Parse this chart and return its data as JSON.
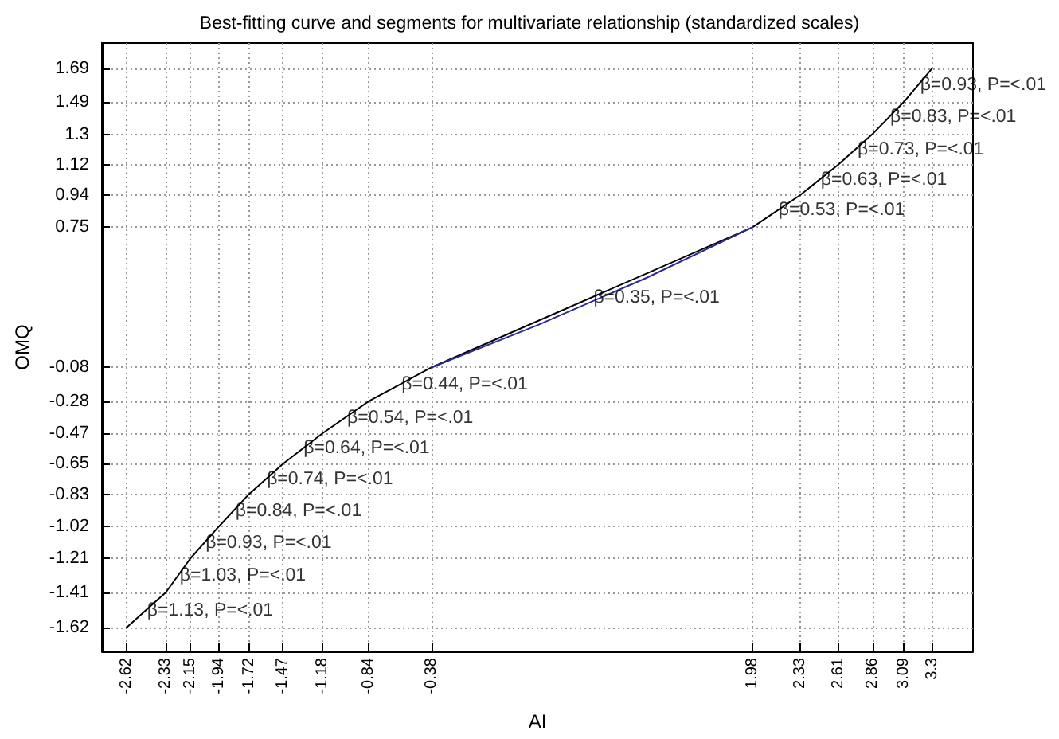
{
  "chart_data": {
    "type": "line",
    "title": "Best-fitting curve and segments for multivariate relationship (standardized scales)",
    "xlabel": "AI",
    "ylabel": "OMQ",
    "series": [
      {
        "color": "#000000",
        "x": [
          -2.62,
          -2.33,
          -2.15,
          -1.94,
          -1.72,
          -1.47,
          -1.18,
          -0.84,
          -0.38,
          1.98,
          2.33,
          2.61,
          2.86,
          3.09,
          3.3
        ],
        "values": [
          -1.62,
          -1.41,
          -1.21,
          -1.02,
          -0.83,
          -0.65,
          -0.47,
          -0.28,
          -0.08,
          0.75,
          0.94,
          1.12,
          1.3,
          1.49,
          1.69
        ]
      },
      {
        "color": "#2a2a9c",
        "x": [
          -0.38,
          0.4,
          1.2,
          1.98
        ],
        "values": [
          -0.08,
          0.17,
          0.45,
          0.75
        ]
      }
    ],
    "xlim": [
      -2.8,
      3.6
    ],
    "ylim": [
      -1.76,
      1.84
    ],
    "xticks": [
      -2.62,
      -2.33,
      -2.15,
      -1.94,
      -1.72,
      -1.47,
      -1.18,
      -0.84,
      -0.38,
      1.98,
      2.33,
      2.61,
      2.86,
      3.09,
      3.3
    ],
    "yticks": [
      -1.62,
      -1.41,
      -1.21,
      -1.02,
      -0.83,
      -0.65,
      -0.47,
      -0.28,
      -0.08,
      0.75,
      0.94,
      1.12,
      1.3,
      1.49,
      1.69
    ],
    "grid": true,
    "marker": "none",
    "line_style": "solid",
    "annotations": [
      {
        "text": "β=1.13, P=<.01",
        "x": -2.48,
        "y": -1.52
      },
      {
        "text": "β=1.03, P=<.01",
        "x": -2.24,
        "y": -1.31
      },
      {
        "text": "β=0.93, P=<.01",
        "x": -2.05,
        "y": -1.12
      },
      {
        "text": "β=0.84, P=<.01",
        "x": -1.83,
        "y": -0.93
      },
      {
        "text": "β=0.74, P=<.01",
        "x": -1.6,
        "y": -0.74
      },
      {
        "text": "β=0.64, P=<.01",
        "x": -1.33,
        "y": -0.56
      },
      {
        "text": "β=0.54, P=<.01",
        "x": -1.01,
        "y": -0.38
      },
      {
        "text": "β=0.44, P=<.01",
        "x": -0.61,
        "y": -0.18
      },
      {
        "text": "β=0.35, P=<.01",
        "x": 0.8,
        "y": 0.33
      },
      {
        "text": "β=0.53, P=<.01",
        "x": 2.16,
        "y": 0.85
      },
      {
        "text": "β=0.63, P=<.01",
        "x": 2.47,
        "y": 1.03
      },
      {
        "text": "β=0.73, P=<.01",
        "x": 2.74,
        "y": 1.21
      },
      {
        "text": "β=0.83, P=<.01",
        "x": 2.98,
        "y": 1.4
      },
      {
        "text": "β=0.93, P=<.01",
        "x": 3.2,
        "y": 1.59
      }
    ]
  }
}
